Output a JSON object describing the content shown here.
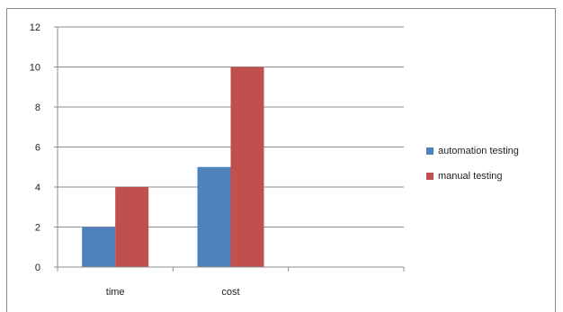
{
  "chart_data": {
    "type": "bar",
    "categories": [
      "time",
      "cost",
      ""
    ],
    "series": [
      {
        "name": "automation testing",
        "values": [
          2,
          5,
          null
        ],
        "color": "#4f81bd"
      },
      {
        "name": "manual testing",
        "values": [
          4,
          10,
          null
        ],
        "color": "#c0504d"
      }
    ],
    "ylim": [
      0,
      12
    ],
    "yticks": [
      0,
      2,
      4,
      6,
      8,
      10,
      12
    ],
    "grid": true,
    "legend_position": "right"
  }
}
